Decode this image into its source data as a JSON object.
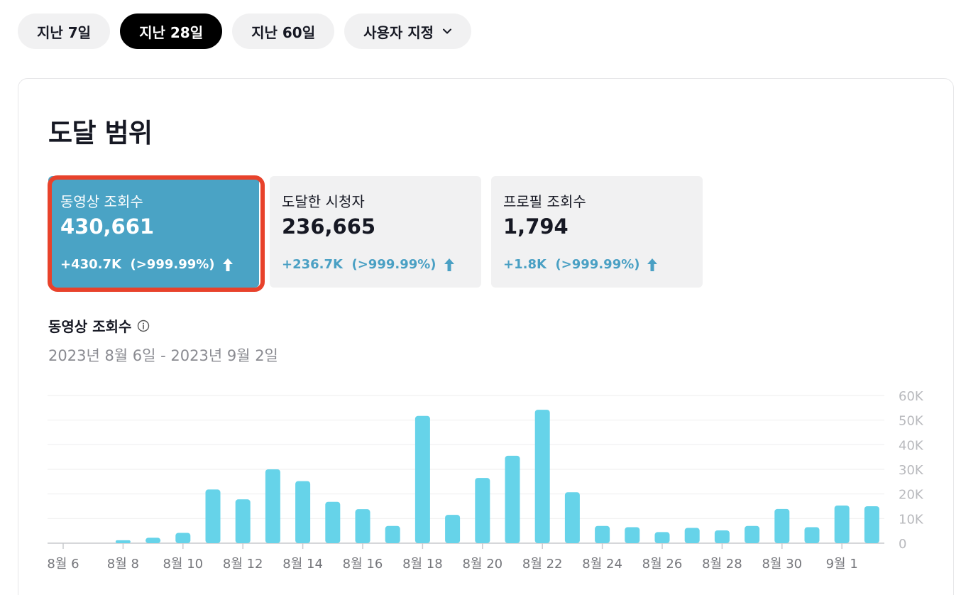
{
  "range_buttons": [
    {
      "label": "지난 7일",
      "active": false
    },
    {
      "label": "지난 28일",
      "active": true
    },
    {
      "label": "지난 60일",
      "active": false
    },
    {
      "label": "사용자 지정",
      "active": false
    }
  ],
  "card": {
    "title": "도달 범위",
    "metrics": [
      {
        "label": "동영상 조회수",
        "value": "430,661",
        "delta": "+430.7K  (>999.99%)",
        "selected": true
      },
      {
        "label": "도달한 시청자",
        "value": "236,665",
        "delta": "+236.7K  (>999.99%)",
        "selected": false
      },
      {
        "label": "프로필 조회수",
        "value": "1,794",
        "delta": "+1.8K  (>999.99%)",
        "selected": false
      }
    ],
    "chart_title": "동영상 조회수",
    "date_range": "2023년 8월 6일 - 2023년 9월 2일"
  },
  "colors": {
    "accent": "#4aa3c5",
    "bar": "#66d3e9",
    "delta": "#4aa0c4",
    "highlight_ring": "#e8422b"
  },
  "icons": {
    "dropdown": "chevron-down-icon",
    "delta": "arrow-up-icon",
    "info": "info-icon"
  },
  "chart_data": {
    "type": "bar",
    "categories": [
      "8월 6",
      "8월 7",
      "8월 8",
      "8월 9",
      "8월 10",
      "8월 11",
      "8월 12",
      "8월 13",
      "8월 14",
      "8월 15",
      "8월 16",
      "8월 17",
      "8월 18",
      "8월 19",
      "8월 20",
      "8월 21",
      "8월 22",
      "8월 23",
      "8월 24",
      "8월 25",
      "8월 26",
      "8월 27",
      "8월 28",
      "8월 29",
      "8월 30",
      "8월 31",
      "9월 1",
      "9월 2"
    ],
    "values": [
      0,
      0,
      1200,
      2200,
      4200,
      21800,
      17800,
      30000,
      25200,
      16800,
      13800,
      7000,
      51700,
      11500,
      26500,
      35500,
      54200,
      20700,
      7000,
      6500,
      4500,
      6200,
      5200,
      7000,
      13900,
      6500,
      15300,
      15000
    ],
    "x_tick_labels": [
      "8월 6",
      "8월 8",
      "8월 10",
      "8월 12",
      "8월 14",
      "8월 16",
      "8월 18",
      "8월 20",
      "8월 22",
      "8월 24",
      "8월 26",
      "8월 28",
      "8월 30",
      "9월 1"
    ],
    "y_tick_labels": [
      "0",
      "10K",
      "20K",
      "30K",
      "40K",
      "50K",
      "60K"
    ],
    "y_ticks": [
      0,
      10000,
      20000,
      30000,
      40000,
      50000,
      60000
    ],
    "ylim": [
      0,
      60000
    ],
    "grid": true,
    "y_axis_side": "right"
  }
}
